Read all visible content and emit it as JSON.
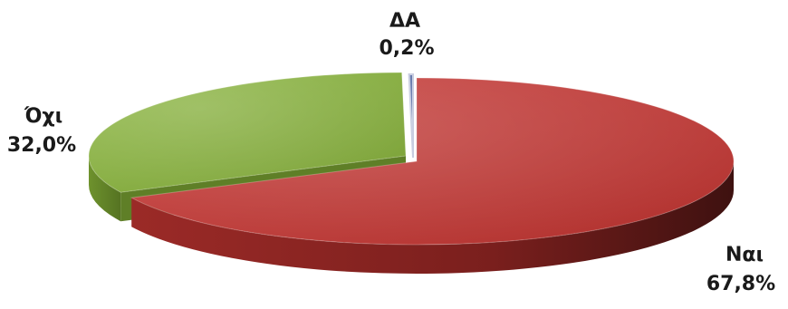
{
  "chart_data": {
    "type": "pie",
    "variant": "3d",
    "slices": [
      {
        "label": "Ναι",
        "value": 67.8,
        "display": "67,8%",
        "color": "#b3322f"
      },
      {
        "label": "Όχι",
        "value": 32.0,
        "display": "32,0%",
        "color": "#7fa43b"
      },
      {
        "label": "ΔΑ",
        "value": 0.2,
        "display": "0,2%",
        "color": "#5b6fa6"
      }
    ]
  }
}
